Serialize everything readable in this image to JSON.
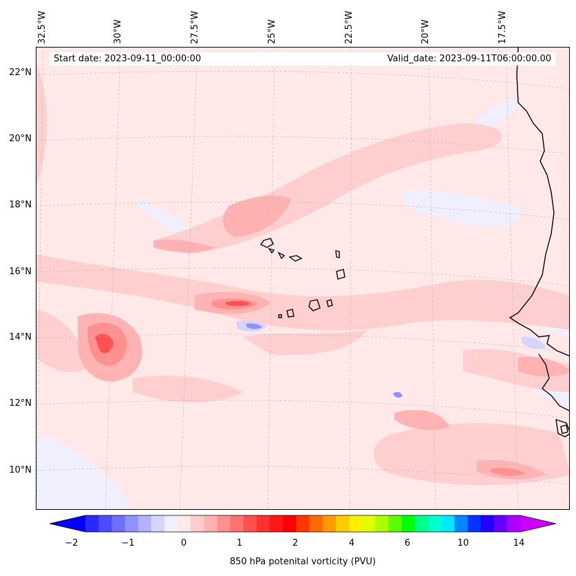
{
  "map": {
    "start_date": "Start date: 2023-09-11_00:00:00",
    "valid_date": "Valid_date: 2023-09-11T06:00:00.00",
    "lon_labels": [
      "32.5°W",
      "30°W",
      "27.5°W",
      "25°W",
      "22.5°W",
      "20°W",
      "17.5°W"
    ],
    "lat_labels": [
      "22°N",
      "20°N",
      "18°N",
      "16°N",
      "14°N",
      "12°N",
      "10°N"
    ],
    "coastline_color": "#000000",
    "gridline_color": "#bbbbbb"
  },
  "colorbar": {
    "label": "850 hPa potenital vorticity (PVU)",
    "tick_labels": [
      "−2",
      "−1",
      "0",
      "1",
      "2",
      "4",
      "6",
      "10",
      "14"
    ],
    "colors": [
      "#0000ff",
      "#2828ff",
      "#4b4bff",
      "#6e6eff",
      "#9090ff",
      "#b2b2ff",
      "#d4d4ff",
      "#efefff",
      "#ffe8e8",
      "#ffcccc",
      "#ffb0b0",
      "#ff9090",
      "#ff7070",
      "#ff5050",
      "#ff3030",
      "#ff1818",
      "#ff0000",
      "#ff3800",
      "#ff6a00",
      "#ff9a00",
      "#ffcc00",
      "#fff000",
      "#e0ff00",
      "#a8ff00",
      "#5cff00",
      "#00ff00",
      "#00ff88",
      "#00ffcc",
      "#00e8ff",
      "#0088ff",
      "#0033ff",
      "#2200ff",
      "#6600ff",
      "#aa00ff",
      "#cc00ff"
    ]
  }
}
